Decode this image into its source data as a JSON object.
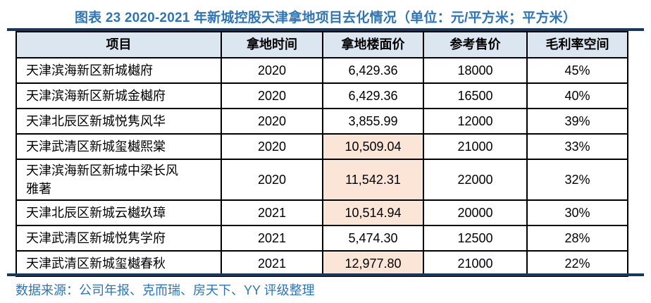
{
  "title": "图表 23 2020-2021 年新城控股天津拿地项目去化情况（单位：元/平方米；平方米）",
  "source_note": "数据来源：公司年报、克而瑞、房天下、YY 评级整理",
  "colors": {
    "title_blue": "#2E75B6",
    "rule_navy": "#17375D",
    "header_bg": "#DCE6F1",
    "highlight_bg": "#FBE5D6",
    "border": "#000000"
  },
  "chart_data": {
    "type": "table",
    "columns": [
      "项目",
      "拿地时间",
      "拿地楼面价",
      "参考售价",
      "毛利率空间"
    ],
    "rows": [
      {
        "project": "天津滨海新区新城樾府",
        "year": "2020",
        "floor_price": "6,429.36",
        "ref_price": "18000",
        "margin": "45%",
        "floor_price_highlighted": false
      },
      {
        "project": "天津滨海新区新城金樾府",
        "year": "2020",
        "floor_price": "6,429.36",
        "ref_price": "16500",
        "margin": "40%",
        "floor_price_highlighted": false
      },
      {
        "project": "天津北辰区新城悦隽风华",
        "year": "2020",
        "floor_price": "3,855.99",
        "ref_price": "12000",
        "margin": "39%",
        "floor_price_highlighted": false
      },
      {
        "project": "天津武清区新城玺樾熙棠",
        "year": "2020",
        "floor_price": "10,509.04",
        "ref_price": "21000",
        "margin": "33%",
        "floor_price_highlighted": true
      },
      {
        "project": "天津滨海新区新城中梁长风雅著",
        "year": "2020",
        "floor_price": "11,542.31",
        "ref_price": "22000",
        "margin": "32%",
        "floor_price_highlighted": true
      },
      {
        "project": "天津北辰区新城云樾玖璋",
        "year": "2021",
        "floor_price": "10,514.94",
        "ref_price": "20000",
        "margin": "30%",
        "floor_price_highlighted": true
      },
      {
        "project": "天津武清区新城悦隽学府",
        "year": "2021",
        "floor_price": "5,474.30",
        "ref_price": "12500",
        "margin": "28%",
        "floor_price_highlighted": false
      },
      {
        "project": "天津武清区新城玺樾春秋",
        "year": "2021",
        "floor_price": "12,977.80",
        "ref_price": "21000",
        "margin": "22%",
        "floor_price_highlighted": true
      }
    ]
  }
}
